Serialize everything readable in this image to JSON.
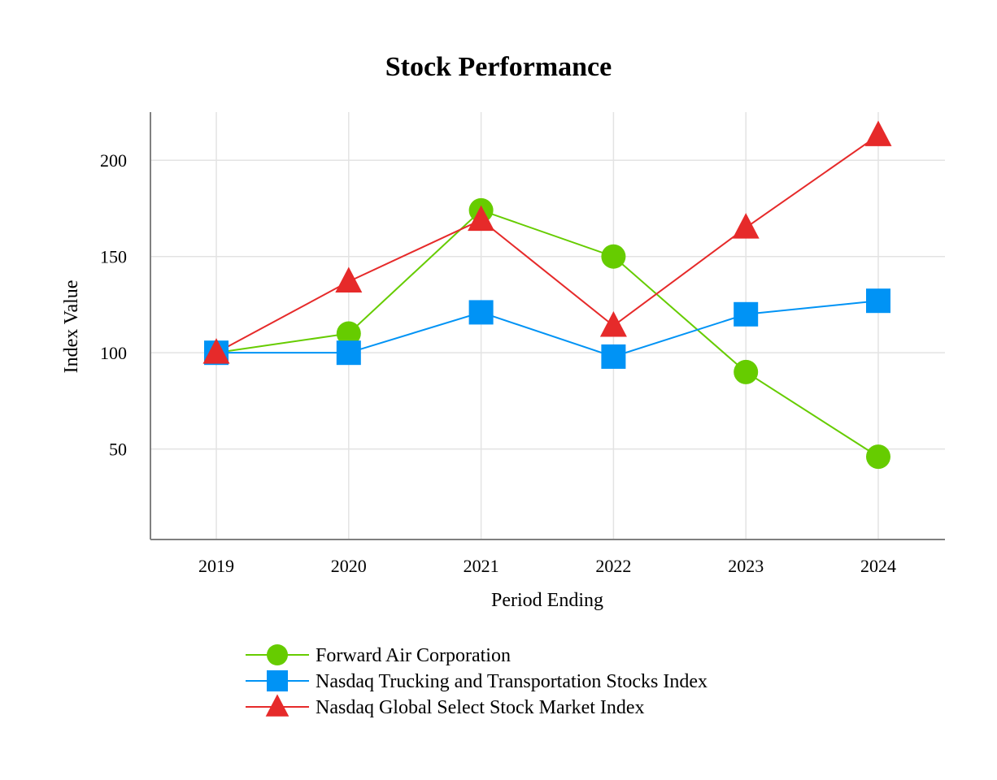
{
  "chart_data": {
    "type": "line",
    "title": "Stock Performance",
    "xlabel": "Period Ending",
    "ylabel": "Index Value",
    "categories": [
      "2019",
      "2020",
      "2021",
      "2022",
      "2023",
      "2024"
    ],
    "yticks": [
      50,
      100,
      150,
      200
    ],
    "ylim": [
      3,
      225
    ],
    "grid": true,
    "legend_position": "bottom",
    "series": [
      {
        "name": "Forward Air Corporation",
        "color": "#66cc00",
        "marker": "circle",
        "values": [
          100,
          110,
          174,
          150,
          90,
          46
        ]
      },
      {
        "name": "Nasdaq Trucking and Transportation Stocks Index",
        "color": "#0093f5",
        "marker": "square",
        "values": [
          100,
          100,
          121,
          98,
          120,
          127
        ]
      },
      {
        "name": "Nasdaq Global Select Stock Market Index",
        "color": "#e62a2a",
        "marker": "triangle",
        "values": [
          100,
          137,
          169,
          114,
          165,
          213
        ]
      }
    ]
  }
}
